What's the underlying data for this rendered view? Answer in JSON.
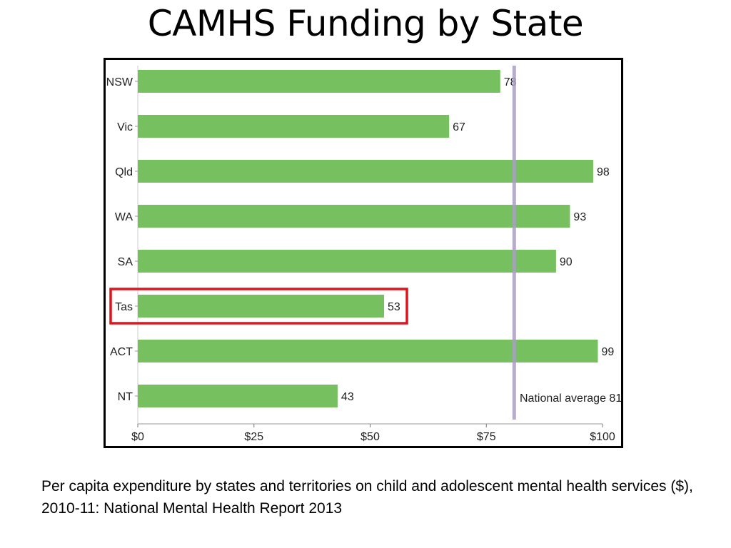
{
  "slide": {
    "title": "CAMHS Funding by State",
    "caption": "Per capita expenditure by states and territories on child and adolescent mental health services ($), 2010-11: National Mental Health Report 2013"
  },
  "chart_data": {
    "type": "bar",
    "orientation": "horizontal",
    "categories": [
      "NSW",
      "Vic",
      "Qld",
      "WA",
      "SA",
      "Tas",
      "ACT",
      "NT"
    ],
    "values": [
      78,
      67,
      98,
      93,
      90,
      53,
      99,
      43
    ],
    "xlim": [
      0,
      100
    ],
    "xticks": [
      0,
      25,
      50,
      75,
      100
    ],
    "xtick_labels": [
      "$0",
      "$25",
      "$50",
      "$75",
      "$100"
    ],
    "bar_color": "#77c05f",
    "reference_line": {
      "value": 81,
      "label": "National average 81",
      "color": "#a99fc2"
    },
    "highlight": {
      "category": "Tas",
      "color": "#e0141e"
    },
    "grid": false
  }
}
